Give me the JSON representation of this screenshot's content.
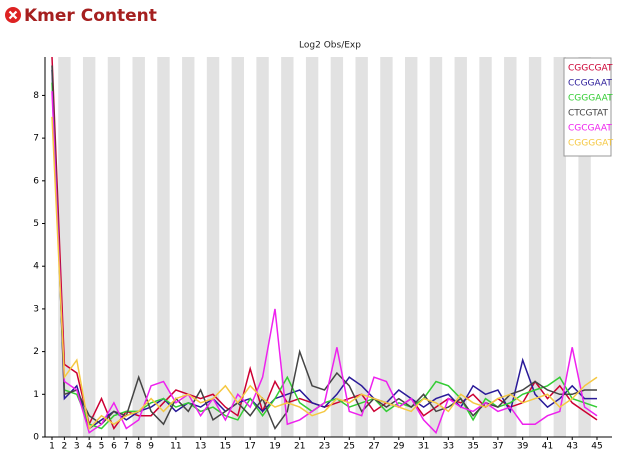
{
  "header": {
    "title": "Kmer Content"
  },
  "chart_data": {
    "type": "line",
    "title": "Log2 Obs/Exp",
    "x": [
      1,
      2,
      3,
      4,
      5,
      6,
      7,
      8,
      9,
      10,
      11,
      12,
      13,
      14,
      15,
      16,
      17,
      18,
      19,
      20,
      21,
      22,
      23,
      24,
      25,
      26,
      27,
      28,
      29,
      30,
      31,
      32,
      33,
      34,
      35,
      36,
      37,
      38,
      39,
      40,
      41,
      42,
      43,
      44,
      45
    ],
    "xlim": [
      1,
      45
    ],
    "xticks": [
      1,
      2,
      3,
      4,
      5,
      6,
      7,
      8,
      9,
      11,
      13,
      15,
      17,
      19,
      21,
      23,
      25,
      27,
      29,
      31,
      33,
      35,
      37,
      39,
      41,
      43,
      45
    ],
    "ylim": [
      0,
      8.9
    ],
    "yticks": [
      0,
      1,
      2,
      3,
      4,
      5,
      6,
      7,
      8
    ],
    "legend": "top-right",
    "series": [
      {
        "name": "CGGCGAT",
        "color": "#cc0033",
        "values": [
          8.9,
          1.7,
          1.5,
          0.3,
          0.9,
          0.2,
          0.6,
          0.5,
          0.5,
          0.8,
          1.1,
          1.0,
          0.9,
          1.0,
          0.7,
          0.5,
          1.6,
          0.6,
          1.3,
          0.8,
          0.9,
          0.8,
          0.7,
          0.8,
          0.9,
          1.0,
          0.6,
          0.8,
          0.7,
          0.9,
          0.5,
          0.7,
          0.9,
          0.8,
          1.0,
          0.7,
          0.9,
          0.7,
          0.8,
          1.3,
          0.9,
          1.2,
          0.8,
          0.6,
          0.4
        ]
      },
      {
        "name": "CCGGAAT",
        "color": "#2a1a99",
        "values": [
          8.6,
          0.9,
          1.2,
          0.2,
          0.4,
          0.6,
          0.4,
          0.6,
          0.7,
          0.9,
          0.6,
          0.8,
          0.7,
          0.9,
          0.6,
          0.8,
          0.9,
          0.6,
          0.9,
          1.0,
          1.1,
          0.8,
          0.7,
          1.0,
          1.4,
          1.2,
          0.9,
          0.8,
          1.1,
          0.9,
          0.7,
          0.9,
          1.0,
          0.7,
          1.2,
          1.0,
          1.1,
          0.6,
          1.8,
          1.0,
          0.7,
          0.9,
          1.2,
          0.9,
          0.9
        ]
      },
      {
        "name": "CGGGAAT",
        "color": "#33cc33",
        "values": [
          8.3,
          1.1,
          1.0,
          0.3,
          0.2,
          0.5,
          0.6,
          0.6,
          0.8,
          0.9,
          0.7,
          0.8,
          0.6,
          0.7,
          0.5,
          0.4,
          0.9,
          0.5,
          0.9,
          1.4,
          0.8,
          0.6,
          0.8,
          0.9,
          0.7,
          0.8,
          0.9,
          0.6,
          0.8,
          0.7,
          0.9,
          1.3,
          1.2,
          0.9,
          0.4,
          0.9,
          0.7,
          0.8,
          1.0,
          1.1,
          1.2,
          1.4,
          0.9,
          0.8,
          0.7
        ]
      },
      {
        "name": "CTCGTAT",
        "color": "#444444",
        "values": [
          8.7,
          1.0,
          1.1,
          0.5,
          0.3,
          0.6,
          0.5,
          1.4,
          0.6,
          0.3,
          0.9,
          0.6,
          1.1,
          0.4,
          0.6,
          0.8,
          0.5,
          0.9,
          0.2,
          0.6,
          2.0,
          1.2,
          1.1,
          1.5,
          1.2,
          0.6,
          0.9,
          0.7,
          0.9,
          0.7,
          1.0,
          0.6,
          0.7,
          0.9,
          0.5,
          0.8,
          0.7,
          1.0,
          1.1,
          1.3,
          1.1,
          1.0,
          1.0,
          1.1,
          1.1
        ]
      },
      {
        "name": "CGCGAAT",
        "color": "#ee22ee",
        "values": [
          8.1,
          1.3,
          1.1,
          0.1,
          0.3,
          0.8,
          0.2,
          0.4,
          1.2,
          1.3,
          0.8,
          1.0,
          0.5,
          0.9,
          0.4,
          1.0,
          0.7,
          1.4,
          3.0,
          0.3,
          0.4,
          0.6,
          0.8,
          2.1,
          0.6,
          0.5,
          1.4,
          1.3,
          0.7,
          0.9,
          0.4,
          0.1,
          0.9,
          0.7,
          0.6,
          0.8,
          0.6,
          0.7,
          0.3,
          0.3,
          0.5,
          0.6,
          2.1,
          0.7,
          0.5
        ]
      },
      {
        "name": "CGGGGAT",
        "color": "#f5c842",
        "values": [
          7.5,
          1.4,
          1.8,
          0.2,
          0.5,
          0.3,
          0.5,
          0.6,
          0.9,
          0.6,
          0.9,
          1.0,
          0.8,
          0.9,
          1.2,
          0.8,
          1.2,
          0.9,
          0.7,
          0.8,
          0.7,
          0.5,
          0.6,
          0.9,
          0.8,
          1.0,
          0.9,
          0.8,
          0.7,
          0.6,
          0.9,
          0.8,
          0.6,
          1.0,
          0.8,
          0.7,
          0.9,
          1.0,
          0.8,
          0.9,
          1.0,
          0.7,
          0.9,
          1.2,
          1.4
        ]
      }
    ]
  }
}
